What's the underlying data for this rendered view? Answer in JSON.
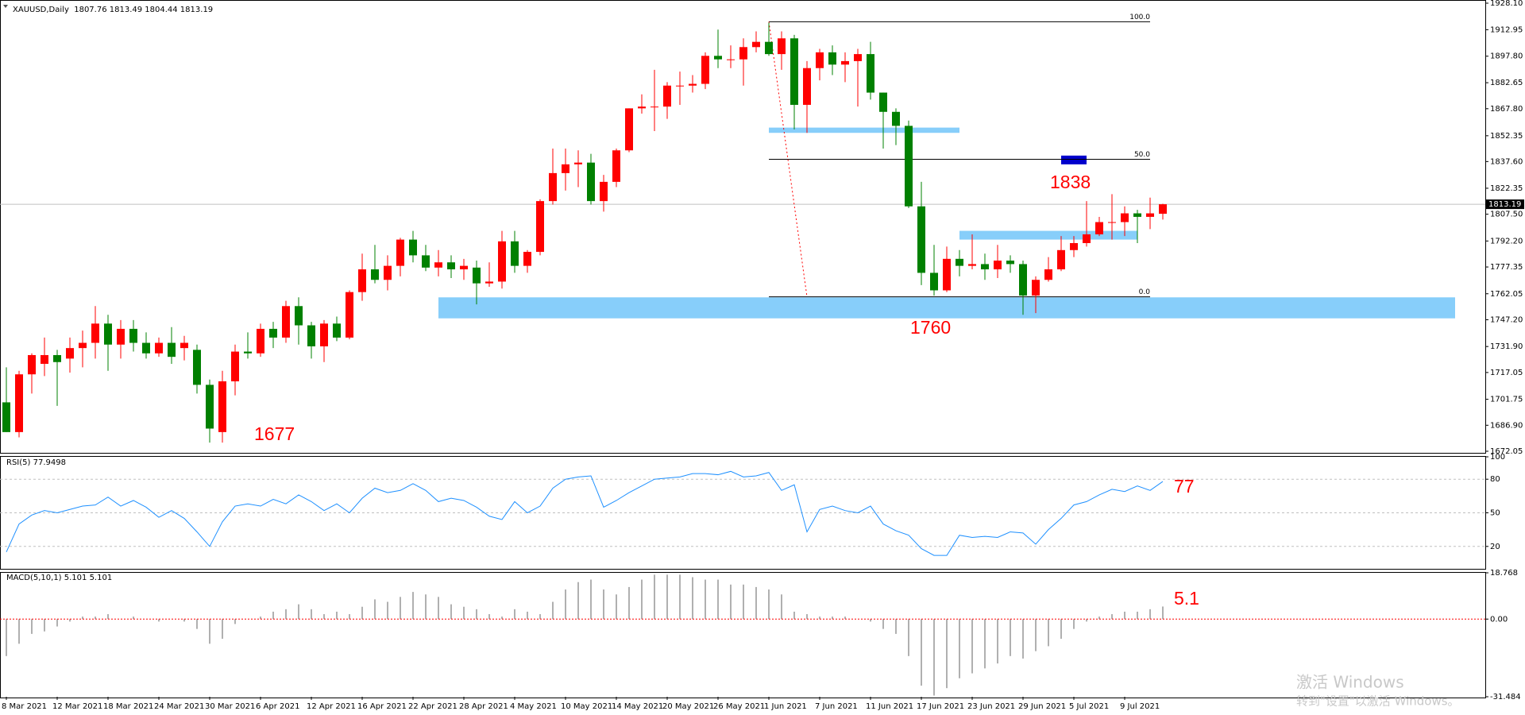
{
  "chart_data": [
    {
      "type": "candlestick",
      "title": "XAUUSD,Daily  1807.76 1813.49 1804.44 1813.19",
      "up_color": "#ff0000",
      "down_color": "#008000",
      "categories": [
        "8 Mar 2021",
        null,
        null,
        null,
        "12 Mar 2021",
        null,
        null,
        null,
        "18 Mar 2021",
        null,
        null,
        null,
        "24 Mar 2021",
        null,
        null,
        null,
        "30 Mar 2021",
        null,
        null,
        null,
        "6 Apr 2021",
        null,
        null,
        null,
        "12 Apr 2021",
        null,
        null,
        null,
        "16 Apr 2021",
        null,
        null,
        null,
        "22 Apr 2021",
        null,
        null,
        null,
        "28 Apr 2021",
        null,
        null,
        null,
        "4 May 2021",
        null,
        null,
        null,
        "10 May 2021",
        null,
        null,
        null,
        "14 May 2021",
        null,
        null,
        null,
        "20 May 2021",
        null,
        null,
        null,
        "26 May 2021",
        null,
        null,
        null,
        "1 Jun 2021",
        null,
        null,
        null,
        "7 Jun 2021",
        null,
        null,
        null,
        "11 Jun 2021",
        null,
        null,
        null,
        "17 Jun 2021",
        null,
        null,
        null,
        "23 Jun 2021",
        null,
        null,
        null,
        "29 Jun 2021",
        null,
        null,
        null,
        "5 Jul 2021",
        null,
        null,
        null,
        "9 Jul 2021",
        null,
        null,
        null
      ],
      "open": [
        1700,
        1683,
        1716,
        1722,
        1727,
        1725,
        1731,
        1734,
        1745,
        1733,
        1742,
        1734,
        1728,
        1734,
        1731,
        1730,
        1710,
        1683,
        1712,
        1729,
        1728,
        1742,
        1737,
        1755,
        1744,
        1732,
        1745,
        1737,
        1763,
        1776,
        1770,
        1778,
        1793,
        1784,
        1777,
        1780,
        1776,
        1777,
        1768,
        1769,
        1792,
        1778,
        1786,
        1815,
        1831,
        1836,
        1837,
        1815,
        1826,
        1844,
        1868,
        1869,
        1869,
        1881,
        1881,
        1882,
        1898,
        1896,
        1896,
        1903,
        1906,
        1899,
        1908,
        1870,
        1891,
        1900,
        1893,
        1895,
        1899,
        1877,
        1866,
        1858,
        1812,
        1774,
        1764,
        1782,
        1778,
        1779,
        1776,
        1781,
        1779,
        1761,
        1770,
        1776,
        1787,
        1791,
        1796,
        1803,
        1803,
        1808,
        1806,
        1807.76
      ],
      "high": [
        1720,
        1718,
        1728,
        1737,
        1730,
        1737,
        1741,
        1755,
        1750,
        1747,
        1747,
        1740,
        1737,
        1743,
        1738,
        1733,
        1713,
        1718,
        1733,
        1740,
        1745,
        1746,
        1758,
        1760,
        1746,
        1747,
        1749,
        1764,
        1785,
        1790,
        1784,
        1794,
        1798,
        1790,
        1787,
        1784,
        1782,
        1781,
        1780,
        1798,
        1798,
        1787,
        1816,
        1845,
        1845,
        1844,
        1842,
        1830,
        1845,
        1868,
        1876,
        1890,
        1883,
        1889,
        1887,
        1900,
        1913,
        1904,
        1908,
        1912,
        1917,
        1912,
        1910,
        1895,
        1902,
        1904,
        1900,
        1902,
        1906,
        1877,
        1868,
        1861,
        1826,
        1790,
        1789,
        1787,
        1796,
        1785,
        1790,
        1784,
        1781,
        1772,
        1783,
        1795,
        1795,
        1815,
        1806,
        1819,
        1812,
        1810,
        1817,
        1813.49
      ],
      "low": [
        1683,
        1680,
        1705,
        1715,
        1698,
        1717,
        1720,
        1725,
        1718,
        1725,
        1729,
        1725,
        1726,
        1722,
        1724,
        1705,
        1677,
        1677,
        1704,
        1725,
        1726,
        1731,
        1734,
        1733,
        1725,
        1723,
        1735,
        1736,
        1758,
        1768,
        1764,
        1772,
        1780,
        1775,
        1772,
        1771,
        1770,
        1756,
        1766,
        1765,
        1774,
        1774,
        1784,
        1813,
        1821,
        1823,
        1813,
        1809,
        1823,
        1843,
        1865,
        1855,
        1862,
        1870,
        1877,
        1879,
        1891,
        1891,
        1881,
        1900,
        1898,
        1890,
        1856,
        1854,
        1884,
        1887,
        1883,
        1869,
        1873,
        1845,
        1847,
        1811,
        1767,
        1761,
        1763,
        1772,
        1776,
        1770,
        1771,
        1774,
        1750,
        1751,
        1769,
        1775,
        1783,
        1789,
        1795,
        1793,
        1795,
        1791,
        1799,
        1804.44
      ],
      "close": [
        1683,
        1716,
        1727,
        1727,
        1723,
        1731,
        1734,
        1745,
        1733,
        1742,
        1734,
        1728,
        1734,
        1726,
        1734,
        1710,
        1685,
        1712,
        1729,
        1728,
        1742,
        1737,
        1755,
        1744,
        1732,
        1745,
        1737,
        1763,
        1776,
        1770,
        1778,
        1793,
        1784,
        1777,
        1780,
        1776,
        1778,
        1768,
        1769,
        1792,
        1778,
        1786,
        1815,
        1831,
        1836,
        1837,
        1815,
        1826,
        1844,
        1868,
        1869,
        1869,
        1881,
        1881,
        1882,
        1898,
        1896,
        1896,
        1903,
        1906,
        1899,
        1908,
        1870,
        1891,
        1900,
        1893,
        1895,
        1899,
        1877,
        1866,
        1858,
        1812,
        1774,
        1764,
        1782,
        1778,
        1779,
        1776,
        1781,
        1779,
        1761,
        1770,
        1776,
        1787,
        1791,
        1796,
        1803,
        1803,
        1808,
        1806,
        1808,
        1813.19
      ],
      "ylim": [
        1672.05,
        1928.1
      ],
      "yticks": [
        {
          "value": 1928.1,
          "label": "1928.10"
        },
        {
          "value": 1912.95,
          "label": "1912.95"
        },
        {
          "value": 1897.8,
          "label": "1897.80"
        },
        {
          "value": 1882.65,
          "label": "1882.65"
        },
        {
          "value": 1867.8,
          "label": "1867.80"
        },
        {
          "value": 1852.35,
          "label": "1852.35"
        },
        {
          "value": 1837.6,
          "label": "1837.60"
        },
        {
          "value": 1822.35,
          "label": "1822.35"
        },
        {
          "value": 1807.5,
          "label": "1807.50"
        },
        {
          "value": 1792.2,
          "label": "1792.20"
        },
        {
          "value": 1777.35,
          "label": "1777.35"
        },
        {
          "value": 1762.05,
          "label": "1762.05"
        },
        {
          "value": 1747.2,
          "label": "1747.20"
        },
        {
          "value": 1731.9,
          "label": "1731.90"
        },
        {
          "value": 1717.05,
          "label": "1717.05"
        },
        {
          "value": 1701.75,
          "label": "1701.75"
        },
        {
          "value": 1686.9,
          "label": "1686.90"
        },
        {
          "value": 1672.05,
          "label": "1672.05"
        }
      ],
      "last_price": 1813.19,
      "zones": [
        {
          "low": 1748,
          "high": 1760,
          "x": [
            34,
            114
          ],
          "color": "#87cefa"
        },
        {
          "low": 1854,
          "high": 1857,
          "x": [
            60,
            75
          ],
          "color": "#87cefa"
        },
        {
          "low": 1793,
          "high": 1798,
          "x": [
            75,
            89
          ],
          "color": "#87cefa"
        },
        {
          "low": 1836,
          "high": 1841,
          "x": [
            83,
            85
          ],
          "color": "#0000cc"
        }
      ],
      "fib": {
        "x": [
          60,
          90
        ],
        "trend_x": [
          60,
          63
        ],
        "levels": [
          {
            "label": "100.0",
            "value": 1917.5
          },
          {
            "label": "50.0",
            "value": 1838.9
          },
          {
            "label": "0.0",
            "value": 1760.3
          }
        ]
      },
      "annotations": [
        "1677",
        "1760",
        "1838"
      ]
    },
    {
      "type": "line",
      "title": "RSI(5) 77.9498",
      "color": "#1e90ff",
      "values": [
        15,
        40,
        48,
        52,
        50,
        53,
        56,
        57,
        64,
        56,
        61,
        55,
        46,
        52,
        45,
        33,
        20,
        42,
        56,
        58,
        56,
        62,
        58,
        66,
        60,
        52,
        58,
        50,
        63,
        72,
        68,
        70,
        76,
        70,
        60,
        63,
        61,
        55,
        47,
        44,
        60,
        50,
        56,
        72,
        80,
        82,
        83,
        55,
        61,
        68,
        74,
        80,
        81,
        82,
        85,
        85,
        84,
        87,
        82,
        83,
        86,
        70,
        75,
        33,
        53,
        56,
        52,
        50,
        56,
        40,
        34,
        30,
        18,
        12,
        12,
        30,
        28,
        29,
        28,
        33,
        32,
        22,
        35,
        45,
        57,
        60,
        66,
        71,
        69,
        74,
        70,
        77.9498
      ],
      "ylim": [
        0,
        100
      ],
      "yticks": [
        20,
        50,
        80,
        100
      ],
      "levels": [
        20,
        50,
        80
      ],
      "annotations": [
        "77"
      ]
    },
    {
      "type": "histogram",
      "title": "MACD(5,10,1) 5.101 5.101",
      "color": "#b0b0b0",
      "zero_color": "#ff0000",
      "values": [
        -15,
        -10,
        -6,
        -5,
        -3,
        -1,
        1,
        1,
        2,
        0,
        1,
        0,
        -1,
        0,
        -1,
        -4,
        -10,
        -8,
        -2,
        0,
        1,
        3,
        4,
        6,
        4,
        2,
        3,
        2,
        5,
        8,
        7,
        9,
        11,
        10,
        9,
        6,
        5,
        4,
        2,
        1,
        4,
        3,
        2,
        7,
        12,
        15,
        16,
        12,
        10,
        13,
        16,
        18,
        18,
        18,
        17,
        16,
        16,
        14,
        14,
        13,
        12,
        10,
        3,
        2,
        1,
        1,
        1,
        0,
        -1,
        -4,
        -6,
        -15,
        -27,
        -31,
        -28,
        -24,
        -22,
        -20,
        -18,
        -15,
        -16,
        -13,
        -11,
        -8,
        -4,
        -1,
        1,
        2,
        3,
        3,
        4,
        5.101
      ],
      "ylim": [
        -31.484,
        18.768
      ],
      "yticks": [
        {
          "value": 18.768,
          "label": "18.768"
        },
        {
          "value": 0,
          "label": "0.00"
        },
        {
          "value": -31.484,
          "label": "-31.484"
        }
      ],
      "annotations": [
        "5.1"
      ]
    }
  ],
  "watermark": [
    "激活 Windows",
    "转到\"设置\"以激活 Windows。"
  ]
}
